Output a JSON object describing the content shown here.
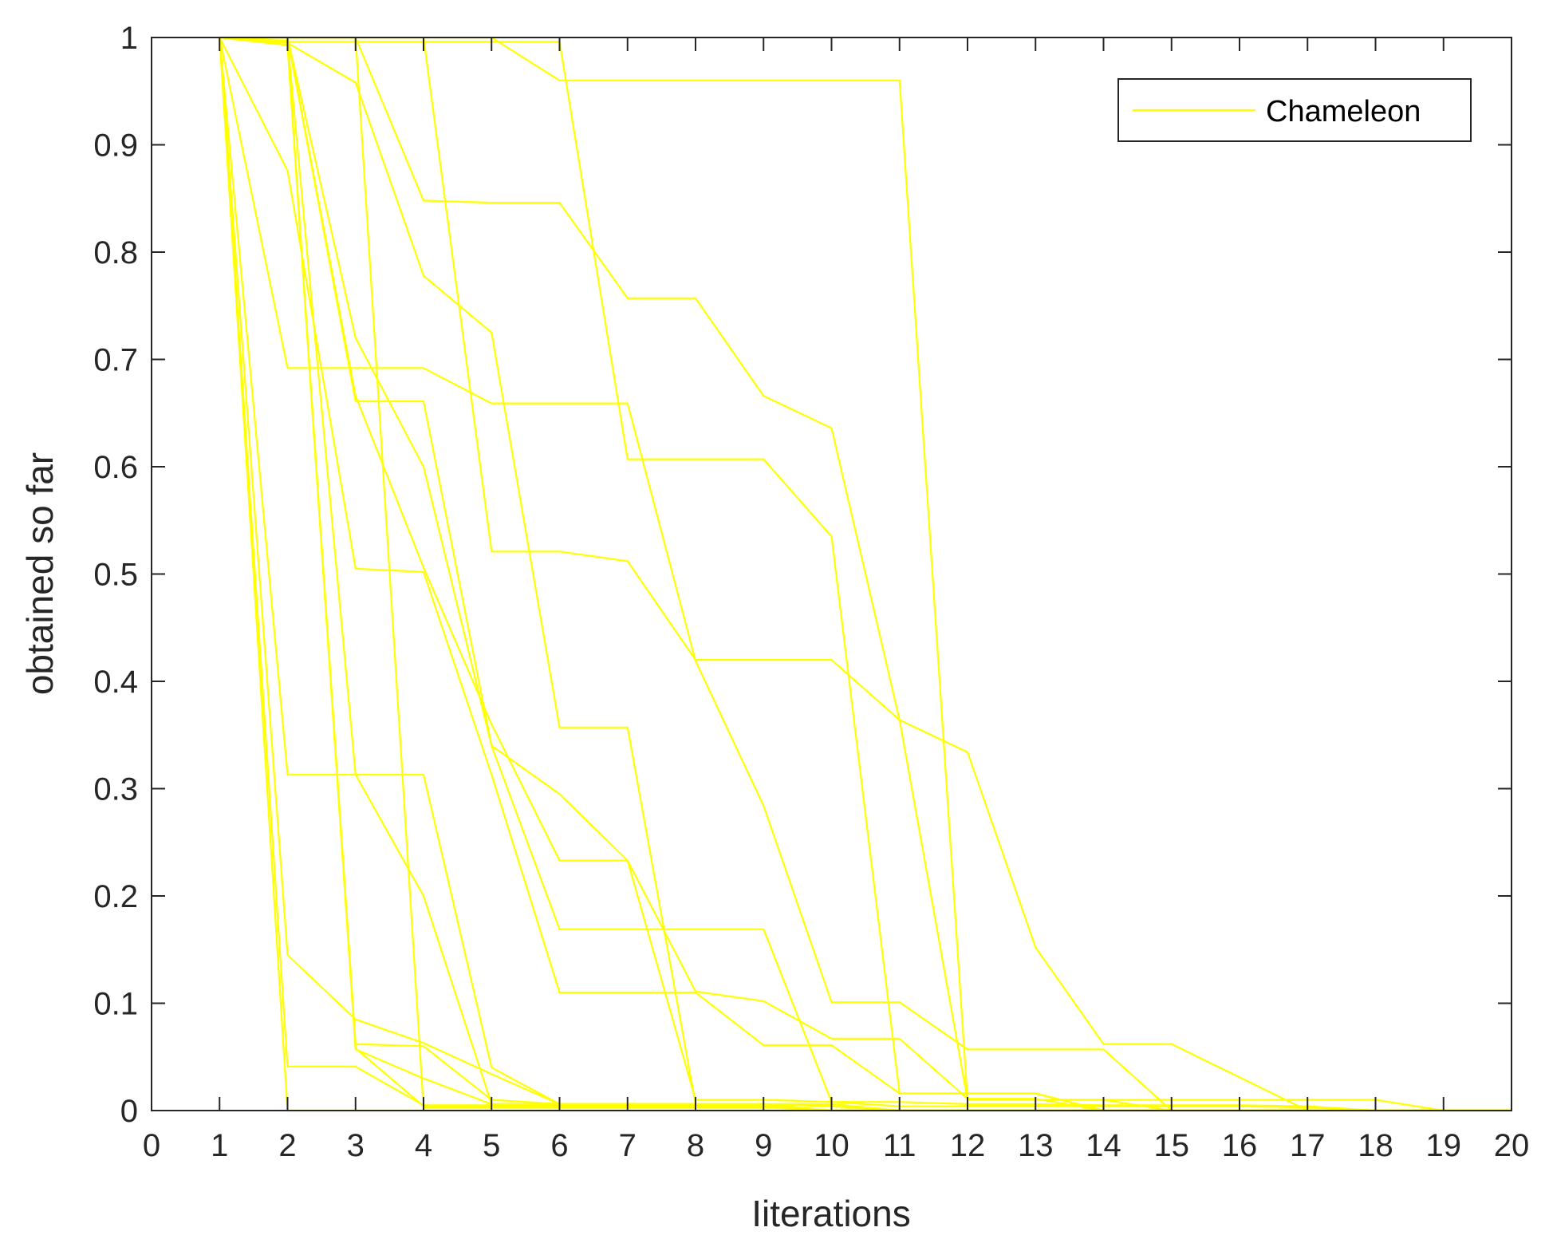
{
  "chart_data": {
    "type": "line",
    "title": "",
    "xlabel": "Iiterations",
    "ylabel": "obtained so far",
    "xlim": [
      0,
      20
    ],
    "ylim": [
      0,
      1
    ],
    "xticks": [
      0,
      1,
      2,
      3,
      4,
      5,
      6,
      7,
      8,
      9,
      10,
      11,
      12,
      13,
      14,
      15,
      16,
      17,
      18,
      19,
      20
    ],
    "yticks": [
      0,
      0.1,
      0.2,
      0.3,
      0.4,
      0.5,
      0.6,
      0.7,
      0.8,
      0.9,
      1
    ],
    "ytick_labels": [
      "0",
      "0.1",
      "0.2",
      "0.3",
      "0.4",
      "0.5",
      "0.6",
      "0.7",
      "0.8",
      "0.9",
      "1"
    ],
    "grid": false,
    "legend": {
      "position": "top-right",
      "entries": [
        "Chameleon"
      ]
    },
    "line_color": "#ffff00",
    "x": [
      1,
      2,
      3,
      4,
      5,
      6,
      7,
      8,
      9,
      10,
      11,
      12,
      13,
      14,
      15,
      16,
      17,
      18,
      19,
      20
    ],
    "series": [
      {
        "values": [
          1,
          1,
          1,
          1,
          1,
          0.96,
          0.96,
          0.96,
          0.96,
          0.96,
          0.96,
          0.01,
          0.01,
          0.01,
          0.01,
          0.01,
          0.01,
          0.01,
          0,
          0
        ]
      },
      {
        "values": [
          1,
          1,
          1,
          0.848,
          0.846,
          0.846,
          0.757,
          0.757,
          0.666,
          0.636,
          0.364,
          0.334,
          0.152,
          0.062,
          0.062,
          0.031,
          0,
          0,
          0,
          0
        ]
      },
      {
        "values": [
          1,
          0.996,
          0.996,
          0.996,
          0.996,
          0.996,
          0.607,
          0.607,
          0.607,
          0.535,
          0.016,
          0.016,
          0.016,
          0,
          0,
          0,
          0,
          0,
          0,
          0
        ]
      },
      {
        "values": [
          1,
          0.995,
          0.958,
          0.778,
          0.725,
          0.357,
          0.357,
          0.006,
          0.006,
          0.006,
          0,
          0,
          0,
          0,
          0,
          0,
          0,
          0,
          0,
          0
        ]
      },
      {
        "values": [
          1,
          1,
          1,
          1,
          0.521,
          0.521,
          0.512,
          0.42,
          0.42,
          0.42,
          0.364,
          0.01,
          0.01,
          0.01,
          0,
          0,
          0,
          0,
          0,
          0
        ]
      },
      {
        "values": [
          1,
          0.692,
          0.692,
          0.692,
          0.659,
          0.659,
          0.659,
          0.419,
          0.284,
          0.101,
          0.101,
          0.057,
          0.057,
          0.057,
          0,
          0,
          0,
          0,
          0,
          0
        ]
      },
      {
        "values": [
          1,
          1,
          0.661,
          0.661,
          0.34,
          0.295,
          0.233,
          0.111,
          0.102,
          0.067,
          0.067,
          0.011,
          0.011,
          0,
          0,
          0,
          0,
          0,
          0,
          0
        ]
      },
      {
        "values": [
          1,
          1,
          0.666,
          0.506,
          0.36,
          0.233,
          0.233,
          0.01,
          0.01,
          0.008,
          0.008,
          0.006,
          0.006,
          0.005,
          0.005,
          0.005,
          0.004,
          0,
          0,
          0
        ]
      },
      {
        "values": [
          1,
          1,
          0.72,
          0.6,
          0.34,
          0.169,
          0.169,
          0.169,
          0.169,
          0.008,
          0.004,
          0.004,
          0.004,
          0.004,
          0.004,
          0.004,
          0.003,
          0,
          0,
          0
        ]
      },
      {
        "values": [
          1,
          0.876,
          0.505,
          0.502,
          0.313,
          0.11,
          0.11,
          0.11,
          0.061,
          0.061,
          0.016,
          0.016,
          0.016,
          0,
          0,
          0,
          0,
          0,
          0,
          0
        ]
      },
      {
        "values": [
          1,
          0.313,
          0.313,
          0.313,
          0.04,
          0.006,
          0.006,
          0.006,
          0.006,
          0.004,
          0,
          0,
          0,
          0,
          0,
          0,
          0,
          0,
          0,
          0
        ]
      },
      {
        "values": [
          1,
          0.997,
          0.313,
          0.2,
          0.006,
          0.006,
          0.006,
          0.006,
          0.004,
          0,
          0,
          0,
          0,
          0,
          0,
          0,
          0,
          0,
          0,
          0
        ]
      },
      {
        "values": [
          1,
          0.145,
          0.085,
          0.063,
          0.034,
          0.006,
          0.006,
          0.006,
          0.006,
          0,
          0,
          0,
          0,
          0,
          0,
          0,
          0,
          0,
          0,
          0
        ]
      },
      {
        "values": [
          1,
          0.041,
          0.041,
          0.005,
          0.005,
          0.005,
          0.005,
          0.005,
          0.004,
          0,
          0,
          0,
          0,
          0,
          0,
          0,
          0,
          0,
          0,
          0
        ]
      },
      {
        "values": [
          1,
          0.993,
          0.062,
          0.06,
          0.01,
          0.006,
          0.006,
          0.006,
          0.004,
          0,
          0,
          0,
          0,
          0,
          0,
          0,
          0,
          0,
          0,
          0
        ]
      },
      {
        "values": [
          1,
          0.993,
          0.057,
          0.03,
          0.006,
          0.006,
          0.006,
          0.006,
          0.004,
          0,
          0,
          0,
          0,
          0,
          0,
          0,
          0,
          0,
          0,
          0
        ]
      },
      {
        "values": [
          1,
          0.993,
          0.058,
          0.004,
          0.004,
          0.004,
          0.004,
          0.004,
          0.004,
          0,
          0,
          0,
          0,
          0,
          0,
          0,
          0,
          0,
          0,
          0
        ]
      },
      {
        "values": [
          1,
          1,
          1,
          0.003,
          0.003,
          0.003,
          0.003,
          0.003,
          0.003,
          0,
          0,
          0,
          0,
          0,
          0,
          0,
          0,
          0,
          0,
          0
        ]
      },
      {
        "values": [
          1,
          0,
          0,
          0,
          0,
          0,
          0,
          0,
          0,
          0,
          0,
          0,
          0,
          0,
          0,
          0,
          0,
          0,
          0,
          0
        ]
      }
    ]
  }
}
